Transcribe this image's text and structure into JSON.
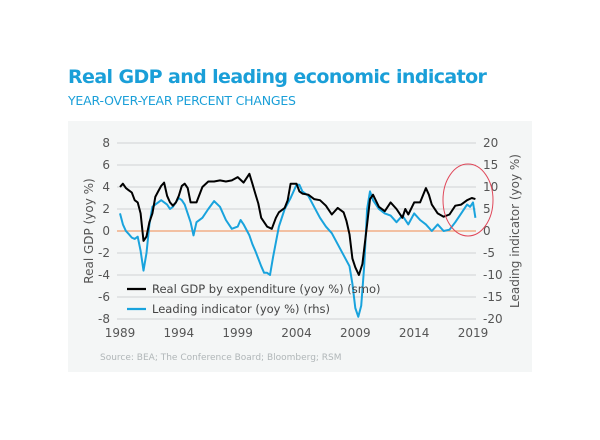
{
  "header": {
    "title": "Real GDP and leading economic indicator",
    "subtitle": "YEAR-OVER-YEAR PERCENT CHANGES"
  },
  "colors": {
    "brand": "#1a9fd8",
    "gdp": "#000000",
    "leading": "#19a3dd",
    "zero_line": "#f0a070",
    "grid": "#cfd3d4",
    "highlight_circle": "#e0485a",
    "panel_bg": "#f4f6f6"
  },
  "chart_data": {
    "type": "line",
    "title": "Real GDP and leading economic indicator",
    "subtitle": "YEAR-OVER-YEAR PERCENT CHANGES",
    "xlabel": "",
    "ylabel": "Real GDP (yoy %)",
    "ylabel_right": "Leading indicator (yoy %)",
    "xlim": [
      1989,
      2019.3
    ],
    "ylim": [
      -8,
      8
    ],
    "ylim_right": [
      -20,
      20
    ],
    "x_ticks": [
      "1989",
      "1994",
      "1999",
      "2004",
      "2009",
      "2014",
      "2019"
    ],
    "y_ticks": [
      "8",
      "6",
      "4",
      "2",
      "0",
      "-2",
      "-4",
      "-6",
      "-8"
    ],
    "y_ticks_right": [
      "20",
      "15",
      "10",
      "5",
      "0",
      "-5",
      "-10",
      "-15",
      "-20"
    ],
    "grid": true,
    "zero_reference_line": 0,
    "legend_placement": "bottom-left",
    "annotation": "red circle highlighting 2017-2019",
    "source": "Source: BEA; The Conference Board;  Bloomberg; RSM",
    "series": [
      {
        "name": "Real GDP by expenditure (yoy %) (smo)",
        "axis": "left",
        "x": [
          1989.0,
          1989.25,
          1989.5,
          1989.75,
          1990.0,
          1990.25,
          1990.5,
          1990.75,
          1991.0,
          1991.25,
          1991.5,
          1991.75,
          1992.0,
          1992.25,
          1992.5,
          1992.75,
          1993.0,
          1993.25,
          1993.5,
          1993.75,
          1994.0,
          1994.25,
          1994.5,
          1994.75,
          1995.0,
          1995.5,
          1996.0,
          1996.5,
          1997.0,
          1997.5,
          1998.0,
          1998.5,
          1999.0,
          1999.5,
          2000.0,
          2000.25,
          2000.5,
          2000.75,
          2001.0,
          2001.5,
          2001.9,
          2002.25,
          2002.5,
          2003.0,
          2003.25,
          2003.5,
          2004.0,
          2004.25,
          2004.5,
          2005.0,
          2005.5,
          2006.0,
          2006.5,
          2007.0,
          2007.5,
          2008.0,
          2008.25,
          2008.5,
          2008.75,
          2009.0,
          2009.3,
          2009.6,
          2010.0,
          2010.25,
          2010.5,
          2011.0,
          2011.5,
          2012.0,
          2012.5,
          2013.0,
          2013.25,
          2013.5,
          2014.0,
          2014.5,
          2015.0,
          2015.25,
          2015.5,
          2016.0,
          2016.5,
          2017.0,
          2017.5,
          2018.0,
          2018.5,
          2018.9,
          2019.2
        ],
        "values": [
          4.0,
          4.3,
          3.9,
          3.7,
          3.5,
          2.8,
          2.6,
          1.6,
          -0.9,
          -0.5,
          0.8,
          1.6,
          3.1,
          3.6,
          4.1,
          4.4,
          3.2,
          2.6,
          2.3,
          2.6,
          3.2,
          4.1,
          4.3,
          3.9,
          2.6,
          2.6,
          4.0,
          4.5,
          4.5,
          4.6,
          4.5,
          4.6,
          4.9,
          4.4,
          5.2,
          4.3,
          3.4,
          2.5,
          1.2,
          0.4,
          0.2,
          1.2,
          1.7,
          2.1,
          2.8,
          4.3,
          4.3,
          3.6,
          3.4,
          3.3,
          2.9,
          2.8,
          2.3,
          1.5,
          2.1,
          1.7,
          0.9,
          -0.3,
          -2.5,
          -3.3,
          -4.0,
          -3.0,
          0.6,
          2.9,
          3.3,
          2.2,
          1.8,
          2.6,
          2.0,
          1.2,
          2.0,
          1.5,
          2.6,
          2.6,
          3.9,
          3.3,
          2.4,
          1.6,
          1.3,
          1.5,
          2.3,
          2.4,
          2.8,
          3.0,
          2.9
        ]
      },
      {
        "name": "Leading indicator (yoy %) (rhs)",
        "axis": "right",
        "x": [
          1989.0,
          1989.25,
          1989.5,
          1989.75,
          1990.0,
          1990.25,
          1990.5,
          1990.75,
          1991.0,
          1991.25,
          1991.5,
          1991.75,
          1992.0,
          1992.5,
          1993.0,
          1993.25,
          1993.5,
          1994.0,
          1994.25,
          1994.5,
          1995.0,
          1995.25,
          1995.5,
          1996.0,
          1996.5,
          1997.0,
          1997.5,
          1998.0,
          1998.5,
          1999.0,
          1999.25,
          1999.5,
          2000.0,
          2000.25,
          2000.5,
          2001.0,
          2001.25,
          2001.5,
          2001.75,
          2002.0,
          2002.5,
          2003.0,
          2003.5,
          2004.0,
          2004.25,
          2004.5,
          2005.0,
          2005.5,
          2006.0,
          2006.5,
          2007.0,
          2007.5,
          2008.0,
          2008.5,
          2008.75,
          2009.0,
          2009.25,
          2009.5,
          2009.75,
          2010.0,
          2010.25,
          2010.5,
          2011.0,
          2011.5,
          2012.0,
          2012.5,
          2013.0,
          2013.5,
          2014.0,
          2014.5,
          2015.0,
          2015.5,
          2016.0,
          2016.5,
          2017.0,
          2017.5,
          2018.0,
          2018.5,
          2018.75,
          2019.0,
          2019.2
        ],
        "values": [
          4.0,
          1.5,
          0.0,
          -0.7,
          -1.5,
          -1.8,
          -1.3,
          -4.5,
          -9.0,
          -5.0,
          1.5,
          5.5,
          6.0,
          7.0,
          6.0,
          5.0,
          5.5,
          7.5,
          7.0,
          6.0,
          2.0,
          -1.0,
          2.0,
          3.0,
          5.0,
          6.8,
          5.5,
          2.5,
          0.5,
          1.0,
          2.5,
          1.5,
          -1.0,
          -3.0,
          -4.5,
          -8.0,
          -9.5,
          -9.5,
          -10.0,
          -6.0,
          1.0,
          5.0,
          7.5,
          10.5,
          10.5,
          9.0,
          8.0,
          5.5,
          3.0,
          1.0,
          -0.5,
          -3.0,
          -5.5,
          -8.0,
          -12.0,
          -17.5,
          -19.5,
          -17.0,
          -8.0,
          5.0,
          9.0,
          7.0,
          5.0,
          4.0,
          3.5,
          2.0,
          3.5,
          1.5,
          4.0,
          2.5,
          1.5,
          0.0,
          1.5,
          0.0,
          0.3,
          2.0,
          4.0,
          6.0,
          5.5,
          6.5,
          3.0
        ]
      }
    ]
  }
}
